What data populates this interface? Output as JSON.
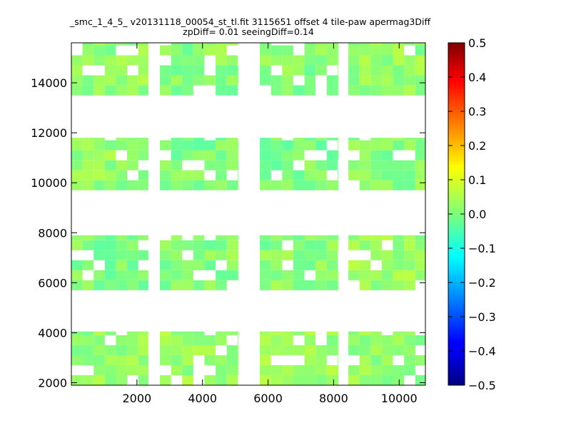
{
  "chart_data": {
    "type": "heatmap",
    "title_lines": [
      "_smc_1_4_5_ v20131118_00054_st_tl.fit 3115651 offset 4 tile-paw apermag3Diff",
      "zpDiff= 0.01 seeingDiff=0.14"
    ],
    "x_ticks": [
      "2000",
      "4000",
      "6000",
      "8000",
      "10000"
    ],
    "y_ticks": [
      "2000",
      "4000",
      "6000",
      "8000",
      "10000",
      "12000",
      "14000"
    ],
    "colorbar_ticks": [
      "0.5",
      "0.4",
      "0.3",
      "0.2",
      "0.1",
      "0.0",
      "−0.1",
      "−0.2",
      "−0.3",
      "−0.4",
      "−0.5"
    ],
    "x_range": [
      0,
      10800
    ],
    "y_range": [
      1900,
      15600
    ],
    "color_range": [
      -0.5,
      0.5
    ],
    "colormap": "jet",
    "cell_size": [
      340,
      400
    ],
    "detector_blocks": [
      {
        "x": [
          0,
          2350
        ],
        "y": [
          1900,
          4050
        ],
        "value": 0.02
      },
      {
        "x": [
          2700,
          5100
        ],
        "y": [
          1900,
          4050
        ],
        "value": 0.03
      },
      {
        "x": [
          5750,
          8150
        ],
        "y": [
          1900,
          4050
        ],
        "value": 0.03
      },
      {
        "x": [
          8450,
          10800
        ],
        "y": [
          1900,
          4050
        ],
        "value": 0.02
      },
      {
        "x": [
          0,
          2350
        ],
        "y": [
          5700,
          7900
        ],
        "value": 0.0
      },
      {
        "x": [
          2700,
          5100
        ],
        "y": [
          5700,
          7900
        ],
        "value": 0.01
      },
      {
        "x": [
          5750,
          8150
        ],
        "y": [
          5700,
          7900
        ],
        "value": 0.01
      },
      {
        "x": [
          8450,
          10800
        ],
        "y": [
          5700,
          7900
        ],
        "value": 0.03
      },
      {
        "x": [
          0,
          2350
        ],
        "y": [
          9700,
          11800
        ],
        "value": 0.02
      },
      {
        "x": [
          2700,
          5100
        ],
        "y": [
          9700,
          11800
        ],
        "value": 0.0
      },
      {
        "x": [
          5750,
          8150
        ],
        "y": [
          9700,
          11800
        ],
        "value": 0.0
      },
      {
        "x": [
          8450,
          10800
        ],
        "y": [
          9700,
          11800
        ],
        "value": 0.01
      },
      {
        "x": [
          0,
          2350
        ],
        "y": [
          13500,
          15600
        ],
        "value": 0.02
      },
      {
        "x": [
          2700,
          5100
        ],
        "y": [
          13500,
          15600
        ],
        "value": 0.01
      },
      {
        "x": [
          5750,
          8150
        ],
        "y": [
          13500,
          15600
        ],
        "value": 0.01
      },
      {
        "x": [
          8450,
          10800
        ],
        "y": [
          13500,
          15600
        ],
        "value": 0.02
      }
    ],
    "grid": false,
    "colorbar_position": "right"
  }
}
